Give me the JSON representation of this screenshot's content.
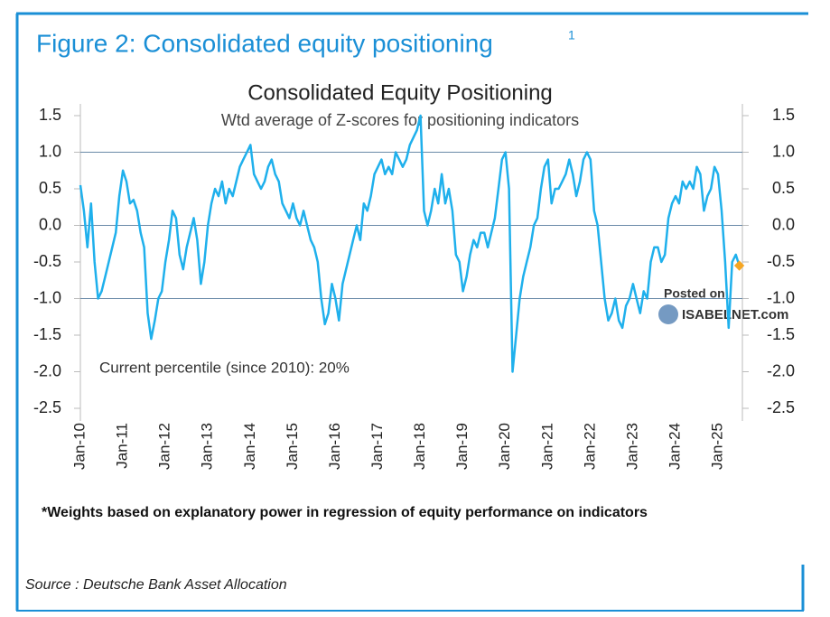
{
  "header": {
    "title": "Figure 2: Consolidated equity positioning",
    "title_superscript": "1"
  },
  "chart_data": {
    "type": "line",
    "title": "Consolidated Equity Positioning",
    "subtitle": "Wtd average of Z-scores for positioning indicators",
    "annotation": "Current percentile (since 2010): 20%",
    "watermark": [
      "Posted on",
      "ISABELNET.com"
    ],
    "categories": [
      "Jan-10",
      null,
      null,
      null,
      null,
      null,
      null,
      null,
      null,
      null,
      null,
      null,
      "Jan-11",
      null,
      null,
      null,
      null,
      null,
      null,
      null,
      null,
      null,
      null,
      null,
      "Jan-12",
      null,
      null,
      null,
      null,
      null,
      null,
      null,
      null,
      null,
      null,
      null,
      "Jan-13",
      null,
      null,
      null,
      null,
      null,
      null,
      null,
      null,
      null,
      null,
      null,
      "Jan-14",
      null,
      null,
      null,
      null,
      null,
      null,
      null,
      null,
      null,
      null,
      null,
      "Jan-15",
      null,
      null,
      null,
      null,
      null,
      null,
      null,
      null,
      null,
      null,
      null,
      "Jan-16",
      null,
      null,
      null,
      null,
      null,
      null,
      null,
      null,
      null,
      null,
      null,
      "Jan-17",
      null,
      null,
      null,
      null,
      null,
      null,
      null,
      null,
      null,
      null,
      null,
      "Jan-18",
      null,
      null,
      null,
      null,
      null,
      null,
      null,
      null,
      null,
      null,
      null,
      "Jan-19",
      null,
      null,
      null,
      null,
      null,
      null,
      null,
      null,
      null,
      null,
      null,
      "Jan-20",
      null,
      null,
      null,
      null,
      null,
      null,
      null,
      null,
      null,
      null,
      null,
      "Jan-21",
      null,
      null,
      null,
      null,
      null,
      null,
      null,
      null,
      null,
      null,
      null,
      "Jan-22",
      null,
      null,
      null,
      null,
      null,
      null,
      null,
      null,
      null,
      null,
      null,
      "Jan-23",
      null,
      null,
      null,
      null,
      null,
      null,
      null,
      null,
      null,
      null,
      null,
      "Jan-24",
      null,
      null,
      null,
      null,
      null,
      null,
      null,
      null,
      null,
      null,
      null,
      "Jan-25",
      null,
      null,
      null,
      null,
      null,
      null
    ],
    "series": [
      {
        "color": "#1fb0ec",
        "values": [
          0.55,
          0.2,
          -0.3,
          0.3,
          -0.5,
          -1.0,
          -0.9,
          -0.7,
          -0.5,
          -0.3,
          -0.1,
          0.4,
          0.75,
          0.6,
          0.3,
          0.35,
          0.2,
          -0.1,
          -0.3,
          -1.2,
          -1.55,
          -1.3,
          -1.0,
          -0.9,
          -0.5,
          -0.2,
          0.2,
          0.1,
          -0.4,
          -0.6,
          -0.3,
          -0.1,
          0.1,
          -0.2,
          -0.8,
          -0.5,
          0.0,
          0.3,
          0.5,
          0.4,
          0.6,
          0.3,
          0.5,
          0.4,
          0.6,
          0.8,
          0.9,
          1.0,
          1.1,
          0.7,
          0.6,
          0.5,
          0.6,
          0.8,
          0.9,
          0.7,
          0.6,
          0.3,
          0.2,
          0.1,
          0.3,
          0.1,
          0.0,
          0.2,
          0.0,
          -0.2,
          -0.3,
          -0.5,
          -1.0,
          -1.35,
          -1.2,
          -0.8,
          -1.0,
          -1.3,
          -0.8,
          -0.6,
          -0.4,
          -0.2,
          0.0,
          -0.2,
          0.3,
          0.2,
          0.4,
          0.7,
          0.8,
          0.9,
          0.7,
          0.8,
          0.7,
          1.0,
          0.9,
          0.8,
          0.9,
          1.1,
          1.2,
          1.3,
          1.5,
          0.2,
          0.0,
          0.2,
          0.5,
          0.3,
          0.7,
          0.3,
          0.5,
          0.2,
          -0.4,
          -0.5,
          -0.9,
          -0.7,
          -0.4,
          -0.2,
          -0.3,
          -0.1,
          -0.1,
          -0.3,
          -0.1,
          0.1,
          0.5,
          0.9,
          1.0,
          0.5,
          -2.0,
          -1.5,
          -1.0,
          -0.7,
          -0.5,
          -0.3,
          0.0,
          0.1,
          0.5,
          0.8,
          0.9,
          0.3,
          0.5,
          0.5,
          0.6,
          0.7,
          0.9,
          0.7,
          0.4,
          0.6,
          0.9,
          1.0,
          0.9,
          0.2,
          0.0,
          -0.5,
          -1.0,
          -1.3,
          -1.2,
          -1.0,
          -1.3,
          -1.4,
          -1.1,
          -1.0,
          -0.8,
          -1.0,
          -1.2,
          -0.9,
          -1.0,
          -0.5,
          -0.3,
          -0.3,
          -0.5,
          -0.4,
          0.1,
          0.3,
          0.4,
          0.3,
          0.6,
          0.5,
          0.6,
          0.5,
          0.8,
          0.7,
          0.2,
          0.4,
          0.5,
          0.8,
          0.7,
          0.2,
          -0.5,
          -1.4,
          -0.5,
          -0.4,
          -0.55
        ]
      }
    ],
    "last_point_color": "#f5a623",
    "ylim": [
      -2.5,
      1.5
    ],
    "yticks": [
      1.5,
      {
        "value": 1,
        "label": "1.0"
      },
      0.5,
      {
        "value": 0,
        "label": "0.0"
      },
      -0.5,
      {
        "value": -1,
        "label": "-1.0"
      },
      -1.5,
      {
        "value": -2,
        "label": "-2.0"
      },
      -2.5
    ],
    "hlines": [
      1,
      0,
      -1
    ]
  },
  "footnote": "*Weights based on explanatory power in regression of equity performance on indicators",
  "source": "Source : Deutsche Bank Asset Allocation"
}
